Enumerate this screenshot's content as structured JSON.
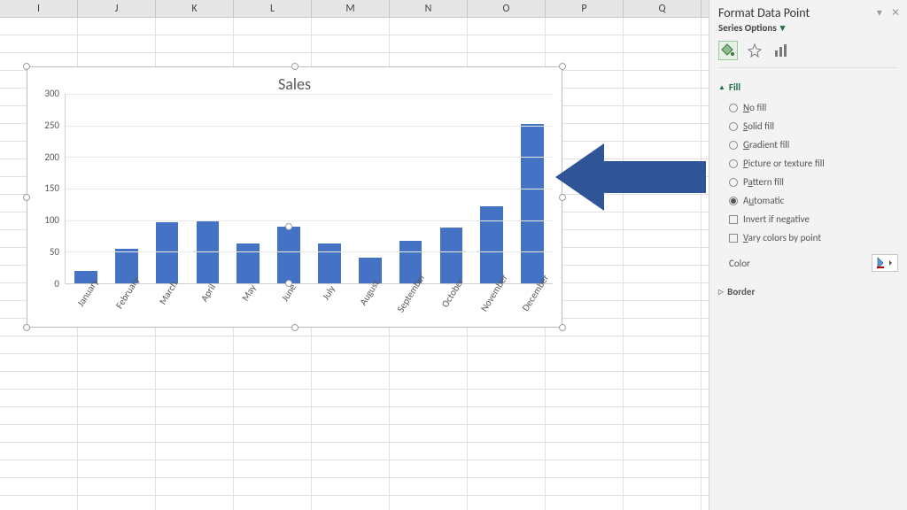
{
  "colors": {
    "bar_default": "#4472c4",
    "arrow": "#2f5597",
    "accent_green": "#217346",
    "header_bg": "#e6e6e6",
    "grid_line": "#e9e9e9",
    "text_grey": "#595959",
    "pane_bg": "#f3f3f3"
  },
  "worksheet": {
    "column_letters": [
      "I",
      "J",
      "K",
      "L",
      "M",
      "N",
      "O",
      "P",
      "Q"
    ],
    "row_count": 28
  },
  "chart": {
    "type": "bar",
    "title": "Sales",
    "title_fontsize": 18,
    "y": {
      "min": 0,
      "max": 300,
      "step": 50,
      "ticks": [
        300,
        250,
        200,
        150,
        100,
        50,
        0
      ]
    },
    "categories": [
      "January",
      "February",
      "March",
      "April",
      "May",
      "June",
      "July",
      "August",
      "September",
      "October",
      "November",
      "December"
    ],
    "values": [
      20,
      55,
      97,
      100,
      63,
      90,
      63,
      40,
      68,
      88,
      122,
      253
    ],
    "bar_width": 0.56,
    "selected_index": 5,
    "label_fontsize": 11,
    "x_label_rotation": -58
  },
  "pane": {
    "title": "Format Data Point",
    "subtitle": "Series Options",
    "tabs": {
      "fill": "fill-effects",
      "effects": "effects",
      "seriesOptions": "series-options"
    },
    "active_tab": "fill-effects",
    "accordion": {
      "fill": {
        "label": "Fill",
        "expanded": true
      },
      "border": {
        "label": "Border",
        "expanded": false
      }
    },
    "fill_options": {
      "no_fill": "No fill",
      "solid_fill": "Solid fill",
      "gradient_fill": "Gradient fill",
      "picture_fill": "Picture or texture fill",
      "pattern_fill": "Pattern fill",
      "automatic": "Automatic",
      "selected": "automatic"
    },
    "checkbox_invert": "Invert if negative",
    "checkbox_vary": "Vary colors by point",
    "color_label": "Color"
  }
}
